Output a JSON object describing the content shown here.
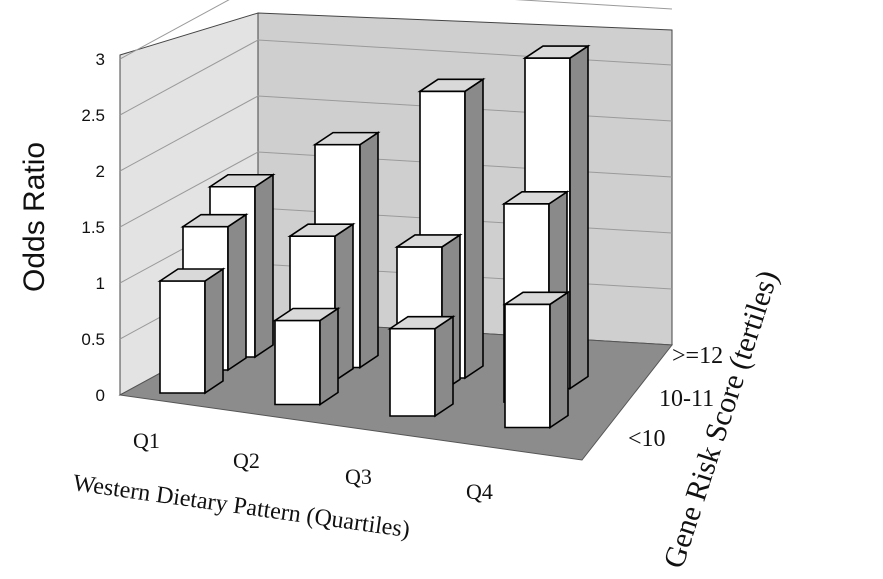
{
  "chart_data": {
    "type": "bar",
    "chart_style": "3d-grouped-bar",
    "categories": [
      "Q1",
      "Q2",
      "Q3",
      "Q4"
    ],
    "series": [
      {
        "name": ">=12",
        "values": [
          1.52,
          1.99,
          2.56,
          2.95
        ]
      },
      {
        "name": "10-11",
        "values": [
          1.28,
          1.29,
          1.29,
          1.77
        ]
      },
      {
        "name": "<10",
        "values": [
          1.0,
          0.75,
          0.78,
          1.1
        ]
      }
    ],
    "xlabel": "Western Dietary Pattern (Quartiles)",
    "ylabel": "Odds Ratio",
    "zlabel": "Gene Risk Score (tertiles)",
    "ylim": [
      0,
      3
    ],
    "yticks": [
      "0",
      "0.5",
      "1",
      "1.5",
      "2",
      "2.5",
      "3"
    ],
    "grid": true,
    "colors": {
      "bar_front": "#ffffff",
      "bar_side": "#8a8a8a",
      "bar_top": "#d9d9d9",
      "back_wall": "#cfcfcf",
      "side_wall": "#e3e3e3",
      "floor": "#8c8c8c",
      "gridline": "#9a9a9a",
      "outline": "#000000"
    }
  }
}
